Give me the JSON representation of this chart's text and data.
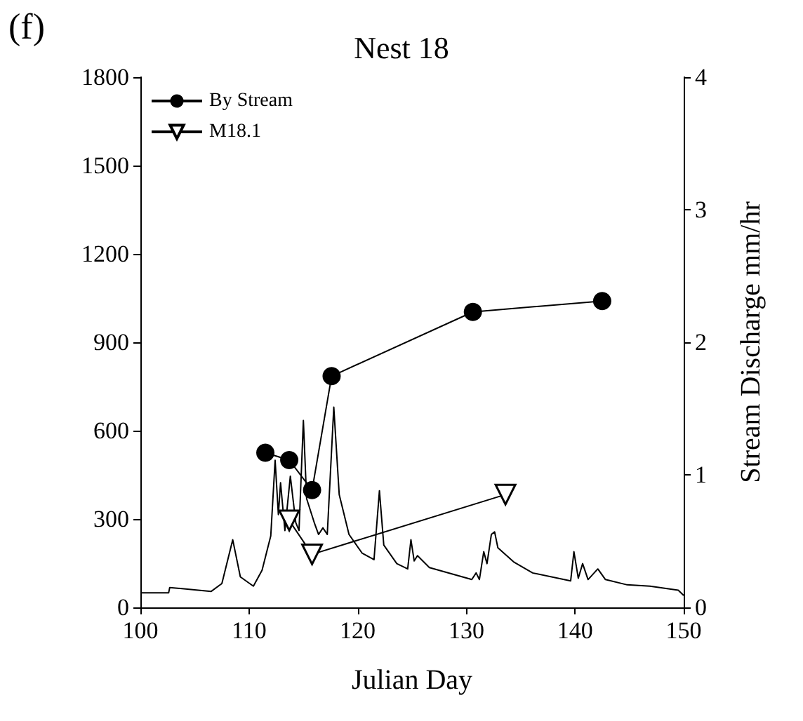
{
  "chart_data": {
    "type": "line",
    "title": "Nest 18",
    "xlabel": "Julian Day",
    "y2label": "Stream Discharge mm/hr",
    "annotations": [
      "(f)"
    ],
    "xlim": [
      100,
      150
    ],
    "xticks": [
      100,
      110,
      120,
      130,
      140,
      150
    ],
    "ylim": [
      0,
      1800
    ],
    "yticks": [
      0,
      300,
      600,
      900,
      1200,
      1500,
      1800
    ],
    "y2lim": [
      0,
      4
    ],
    "y2ticks": [
      0,
      1,
      2,
      3,
      4
    ],
    "legend": "top left",
    "grid": false,
    "series": [
      {
        "name": "By Stream",
        "color": "#000000",
        "marker": "circle",
        "x": [
          111.5,
          113.7,
          115.8,
          117.6,
          130.6,
          142.5
        ],
        "values": [
          525,
          500,
          398,
          785,
          1003,
          1040
        ]
      },
      {
        "name": "M18.1",
        "color": "#000000",
        "marker": "triangle",
        "x": [
          113.7,
          115.8,
          133.6
        ],
        "values": [
          295,
          180,
          383
        ]
      },
      {
        "color": "#000000",
        "marker": "none",
        "axis": "y2",
        "x": [
          100,
          102.6,
          102.7,
          106.5,
          107.5,
          108.5,
          109.2,
          110.4,
          111.2,
          112.0,
          112.4,
          112.7,
          112.9,
          113.3,
          113.8,
          114.3,
          114.6,
          115.0,
          115.3,
          116.0,
          116.4,
          116.8,
          117.2,
          117.8,
          118.3,
          119.2,
          120.4,
          121.5,
          122.0,
          122.4,
          123.6,
          124.6,
          124.9,
          125.2,
          125.5,
          126.6,
          130.5,
          130.9,
          131.2,
          131.6,
          131.9,
          132.3,
          132.6,
          132.9,
          134.4,
          136.1,
          139.6,
          139.9,
          140.3,
          140.7,
          141.2,
          142.1,
          142.8,
          144.8,
          146.9,
          149.5,
          150
        ],
        "values": [
          0.11,
          0.11,
          0.15,
          0.12,
          0.18,
          0.51,
          0.23,
          0.16,
          0.28,
          0.54,
          1.11,
          0.7,
          0.94,
          0.58,
          0.99,
          0.64,
          0.58,
          1.41,
          0.82,
          0.64,
          0.55,
          0.6,
          0.55,
          1.51,
          0.85,
          0.55,
          0.41,
          0.36,
          0.88,
          0.47,
          0.33,
          0.29,
          0.51,
          0.35,
          0.39,
          0.3,
          0.21,
          0.26,
          0.21,
          0.42,
          0.33,
          0.55,
          0.57,
          0.45,
          0.34,
          0.26,
          0.2,
          0.42,
          0.22,
          0.33,
          0.21,
          0.29,
          0.21,
          0.17,
          0.16,
          0.13,
          0.09
        ]
      }
    ]
  }
}
